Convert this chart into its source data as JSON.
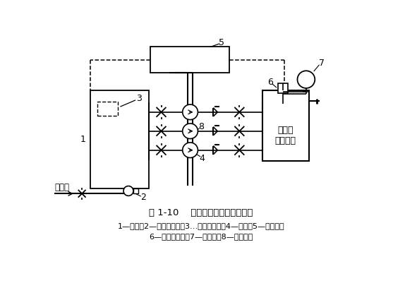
{
  "title": "图 1-10    恒压变流量变频给水系统",
  "caption_line1": "1—水池；2—液位控制阀；3…水位传感器；4—水泵；5—电控柜；",
  "caption_line2": "6—压力传感器；7—压力表；8—控制线路",
  "label_jiewang": "接外网",
  "label_jienei": "接室内\n给水系统",
  "bg_color": "#ffffff",
  "fig_width": 5.57,
  "fig_height": 4.25,
  "dpi": 100
}
